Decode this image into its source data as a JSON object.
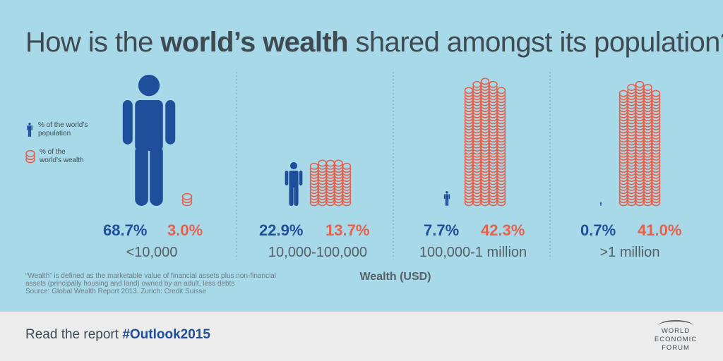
{
  "title": {
    "before": "How is the ",
    "bold": "world’s wealth",
    "after": " shared amongst its population?"
  },
  "legend": {
    "population_line1": "% of the world’s",
    "population_line2": "population",
    "wealth_line1": "% of the",
    "wealth_line2": "world’s wealth"
  },
  "colors": {
    "population": "#1f4e9b",
    "wealth": "#e8604a",
    "background": "#a8d9e8",
    "footer": "#ececec"
  },
  "chart_data": {
    "type": "bar",
    "title": "How is the world’s wealth shared amongst its population?",
    "xlabel": "Wealth (USD)",
    "categories": [
      "<10,000",
      "10,000-100,000",
      "100,000-1 million",
      ">1 million"
    ],
    "series": [
      {
        "name": "% of the world’s population",
        "values": [
          68.7,
          22.9,
          7.7,
          0.7
        ],
        "labels": [
          "68.7%",
          "22.9%",
          "7.7%",
          "0.7%"
        ]
      },
      {
        "name": "% of the world’s wealth",
        "values": [
          3.0,
          13.7,
          42.3,
          41.0
        ],
        "labels": [
          "3.0%",
          "13.7%",
          "42.3%",
          "41.0%"
        ]
      }
    ]
  },
  "note": {
    "line1": "“Wealth” is defined as the marketable value of financial assets plus non-financial",
    "line2": "assets (principally housing and land) owned by an adult, less debts",
    "line3": "Source: Global Wealth Report 2013. Zurich: Credit Suisse"
  },
  "footer": {
    "text": "Read the report ",
    "hashtag": "#Outlook2015",
    "logo_line1": "WORLD",
    "logo_line2": "ECONOMIC",
    "logo_line3": "FORUM"
  }
}
